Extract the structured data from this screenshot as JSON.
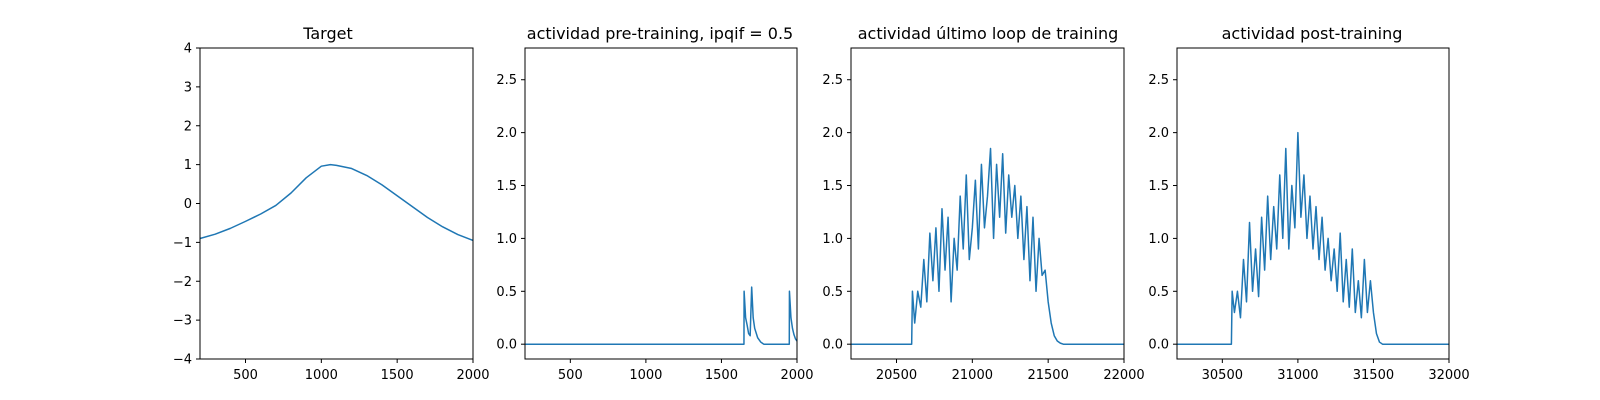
{
  "colors": {
    "series": "#1f77b4",
    "axes": "#000000",
    "background": "#ffffff"
  },
  "chart_data": [
    {
      "type": "line",
      "title": "Target",
      "xlabel": "",
      "ylabel": "",
      "xlim": [
        200,
        2000
      ],
      "ylim": [
        -4,
        4
      ],
      "xticks": [
        500,
        1000,
        1500,
        2000
      ],
      "yticks": [
        -4,
        -3,
        -2,
        -1,
        0,
        1,
        2,
        3,
        4
      ],
      "grid": false,
      "series": [
        {
          "x": [
            200,
            300,
            400,
            500,
            600,
            700,
            800,
            900,
            1000,
            1060,
            1100,
            1200,
            1300,
            1400,
            1500,
            1600,
            1700,
            1800,
            1900,
            2000
          ],
          "y": [
            -0.9,
            -0.79,
            -0.64,
            -0.46,
            -0.27,
            -0.05,
            0.27,
            0.66,
            0.96,
            1.0,
            0.98,
            0.9,
            0.72,
            0.48,
            0.2,
            -0.08,
            -0.36,
            -0.6,
            -0.8,
            -0.95
          ]
        }
      ]
    },
    {
      "type": "line",
      "title": "actividad pre-training, ipqif = 0.5",
      "xlabel": "",
      "ylabel": "",
      "xlim": [
        200,
        2000
      ],
      "ylim": [
        -0.14,
        2.8
      ],
      "xticks": [
        500,
        1000,
        1500,
        2000
      ],
      "yticks": [
        0.0,
        0.5,
        1.0,
        1.5,
        2.0,
        2.5
      ],
      "grid": false,
      "series": [
        {
          "x": [
            200,
            1649,
            1650,
            1660,
            1670,
            1680,
            1690,
            1700,
            1710,
            1720,
            1740,
            1760,
            1780,
            1800,
            1949,
            1950,
            1960,
            1970,
            1980,
            1990,
            2000
          ],
          "y": [
            0,
            0,
            0.5,
            0.25,
            0.18,
            0.1,
            0.08,
            0.54,
            0.25,
            0.15,
            0.06,
            0.02,
            0.0,
            0,
            0,
            0.5,
            0.25,
            0.15,
            0.09,
            0.05,
            0.03
          ]
        }
      ]
    },
    {
      "type": "line",
      "title": "actividad último loop de training",
      "xlabel": "",
      "ylabel": "",
      "xlim": [
        20200,
        22000
      ],
      "ylim": [
        -0.14,
        2.8
      ],
      "xticks": [
        20500,
        21000,
        21500,
        22000
      ],
      "yticks": [
        0.0,
        0.5,
        1.0,
        1.5,
        2.0,
        2.5
      ],
      "grid": false,
      "series": [
        {
          "x": [
            20200,
            20600,
            20605,
            20620,
            20640,
            20660,
            20680,
            20700,
            20720,
            20740,
            20760,
            20780,
            20800,
            20820,
            20840,
            20860,
            20880,
            20900,
            20920,
            20940,
            20960,
            20980,
            21000,
            21020,
            21040,
            21060,
            21080,
            21100,
            21120,
            21140,
            21160,
            21180,
            21200,
            21220,
            21240,
            21260,
            21280,
            21300,
            21320,
            21340,
            21360,
            21380,
            21400,
            21420,
            21440,
            21460,
            21480,
            21500,
            21520,
            21540,
            21560,
            21580,
            21600,
            22000
          ],
          "y": [
            0,
            0,
            0.5,
            0.2,
            0.5,
            0.35,
            0.8,
            0.4,
            1.05,
            0.6,
            1.1,
            0.5,
            1.28,
            0.7,
            1.2,
            0.4,
            1.0,
            0.7,
            1.4,
            0.9,
            1.6,
            0.8,
            1.1,
            1.55,
            0.9,
            1.7,
            1.1,
            1.4,
            1.85,
            1.0,
            1.7,
            1.2,
            1.8,
            1.05,
            1.6,
            1.2,
            1.5,
            1.0,
            1.4,
            0.8,
            1.3,
            0.6,
            1.2,
            0.5,
            1.0,
            0.65,
            0.7,
            0.4,
            0.2,
            0.08,
            0.03,
            0.01,
            0,
            0
          ]
        }
      ]
    },
    {
      "type": "line",
      "title": "actividad post-training",
      "xlabel": "",
      "ylabel": "",
      "xlim": [
        30200,
        32000
      ],
      "ylim": [
        -0.14,
        2.8
      ],
      "xticks": [
        30500,
        31000,
        31500,
        32000
      ],
      "yticks": [
        0.0,
        0.5,
        1.0,
        1.5,
        2.0,
        2.5
      ],
      "grid": false,
      "series": [
        {
          "x": [
            30200,
            30560,
            30565,
            30580,
            30600,
            30620,
            30640,
            30660,
            30680,
            30700,
            30720,
            30740,
            30760,
            30780,
            30800,
            30820,
            30840,
            30860,
            30880,
            30900,
            30920,
            30940,
            30960,
            30980,
            31000,
            31020,
            31040,
            31060,
            31080,
            31100,
            31120,
            31140,
            31160,
            31180,
            31200,
            31220,
            31240,
            31260,
            31280,
            31300,
            31320,
            31340,
            31360,
            31380,
            31400,
            31420,
            31440,
            31460,
            31480,
            31500,
            31520,
            31540,
            31560,
            32000
          ],
          "y": [
            0,
            0,
            0.5,
            0.3,
            0.5,
            0.25,
            0.8,
            0.4,
            1.15,
            0.5,
            0.9,
            0.45,
            1.2,
            0.7,
            1.4,
            0.8,
            1.3,
            0.9,
            1.6,
            1.0,
            1.85,
            0.9,
            1.5,
            1.1,
            2.0,
            1.2,
            1.6,
            1.0,
            1.4,
            0.9,
            1.3,
            0.8,
            1.2,
            0.7,
            1.0,
            0.6,
            0.9,
            0.5,
            1.05,
            0.4,
            0.8,
            0.35,
            0.9,
            0.3,
            0.6,
            0.25,
            0.8,
            0.3,
            0.6,
            0.3,
            0.1,
            0.02,
            0.0,
            0
          ]
        }
      ]
    }
  ]
}
